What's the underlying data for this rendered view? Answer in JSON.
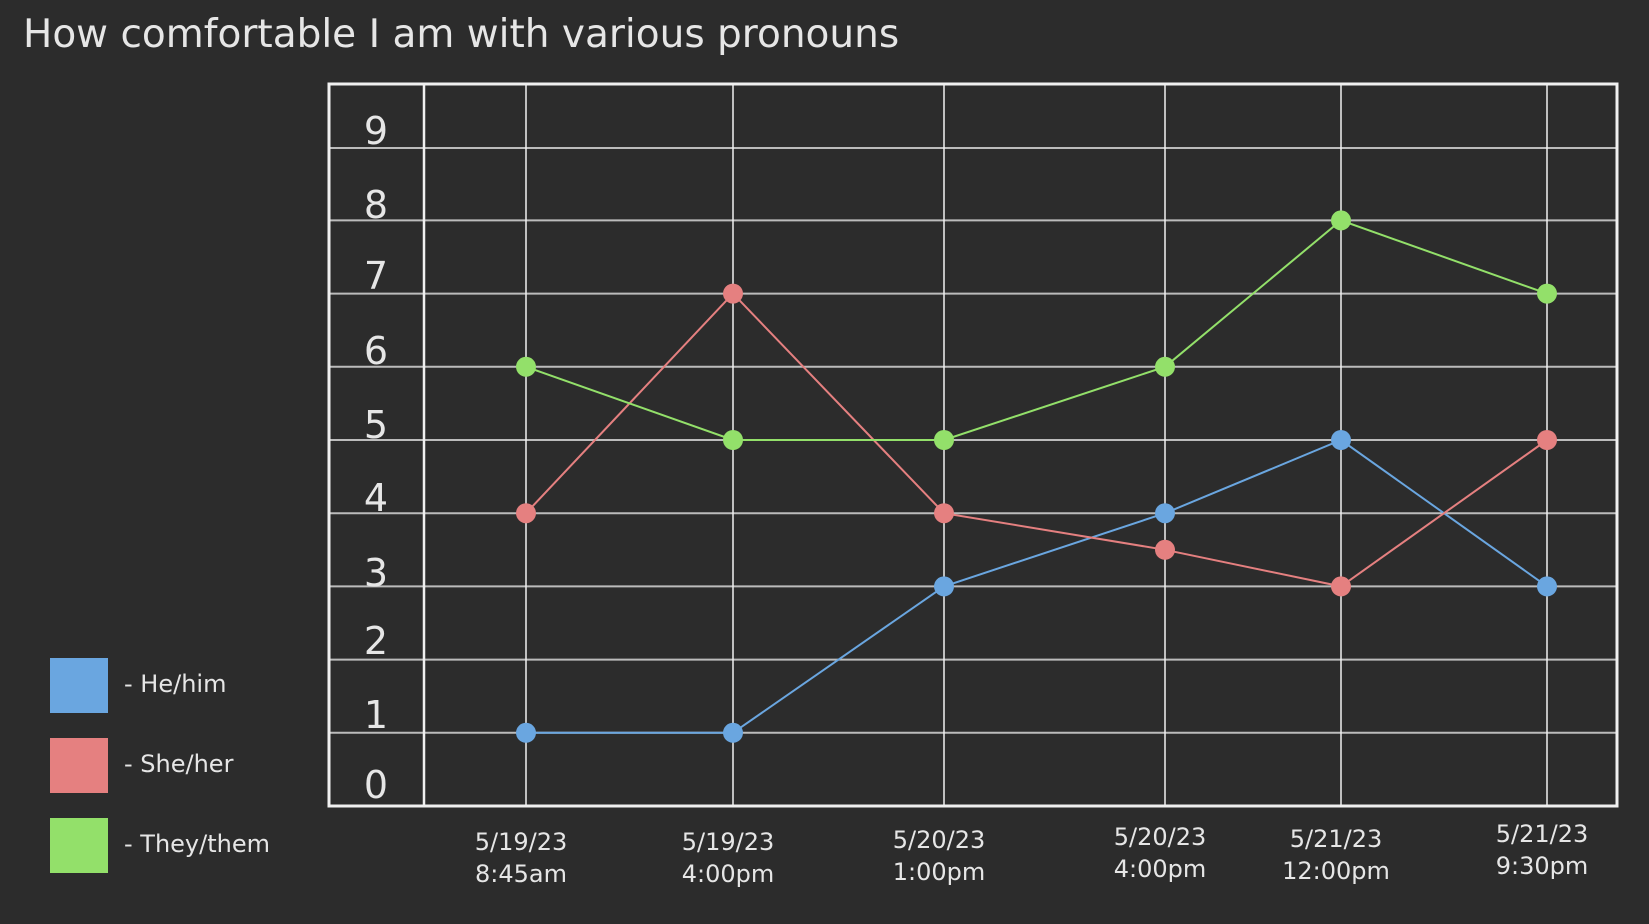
{
  "chart_data": {
    "type": "line",
    "title": "How comfortable I am with various pronouns",
    "xlabel": "",
    "ylabel": "",
    "categories": [
      [
        "5/19/23",
        "8:45am"
      ],
      [
        "5/19/23",
        "4:00pm"
      ],
      [
        "5/20/23",
        "1:00pm"
      ],
      [
        "5/20/23",
        "4:00pm"
      ],
      [
        "5/21/23",
        "12:00pm"
      ],
      [
        "5/21/23",
        "9:30pm"
      ]
    ],
    "y_ticks": [
      "0",
      "1",
      "2",
      "3",
      "4",
      "5",
      "6",
      "7",
      "8",
      "9"
    ],
    "ylim": [
      0,
      9
    ],
    "grid": true,
    "legend_position": "bottom-left",
    "series": [
      {
        "name": "He/him",
        "label": "- He/him",
        "color": "#6aa6e0",
        "values": [
          1,
          1,
          3,
          4,
          5,
          3
        ]
      },
      {
        "name": "She/her",
        "label": "- She/her",
        "color": "#e58080",
        "values": [
          4,
          7,
          4,
          3.5,
          3,
          5
        ]
      },
      {
        "name": "They/them",
        "label": "- They/them",
        "color": "#93e06a",
        "values": [
          6,
          5,
          5,
          6,
          8,
          7
        ]
      }
    ]
  }
}
